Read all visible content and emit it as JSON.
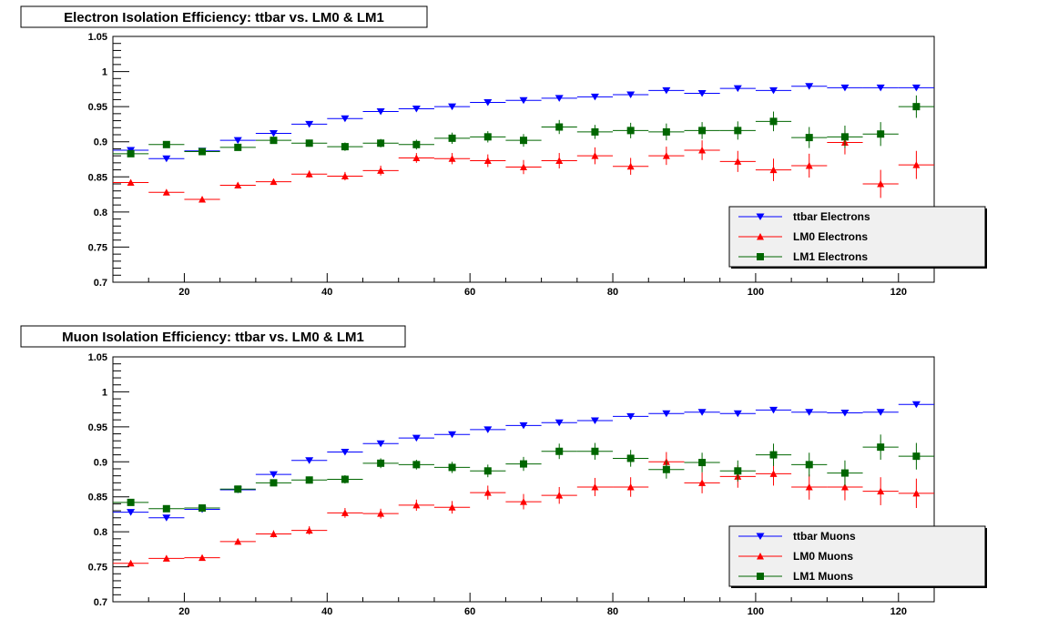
{
  "colors": {
    "ttbar": "#0000ff",
    "lm0": "#ff0000",
    "lm1": "#006600",
    "legend_bg": "#f0f0f0",
    "frame": "#000000"
  },
  "chart_data": [
    {
      "type": "scatter",
      "title": "Electron Isolation Efficiency: ttbar vs. LM0 & LM1",
      "xlabel": "",
      "ylabel": "",
      "xlim": [
        10,
        125
      ],
      "ylim": [
        0.7,
        1.05
      ],
      "xticks": [
        "20",
        "40",
        "60",
        "80",
        "100",
        "120"
      ],
      "yticks": [
        "0.7",
        "0.75",
        "0.8",
        "0.85",
        "0.9",
        "0.95",
        "1",
        "1.05"
      ],
      "legend_position": "bottom-right",
      "x": [
        12.5,
        17.5,
        22.5,
        27.5,
        32.5,
        37.5,
        42.5,
        47.5,
        52.5,
        57.5,
        62.5,
        67.5,
        72.5,
        77.5,
        82.5,
        87.5,
        92.5,
        97.5,
        102.5,
        107.5,
        112.5,
        117.5,
        122.5
      ],
      "series": [
        {
          "name": "ttbar Electrons",
          "marker": "triangle-down",
          "color": "#0000ff",
          "values": [
            0.888,
            0.876,
            0.887,
            0.902,
            0.912,
            0.925,
            0.933,
            0.943,
            0.947,
            0.95,
            0.956,
            0.959,
            0.962,
            0.964,
            0.967,
            0.973,
            0.969,
            0.976,
            0.973,
            0.979,
            0.977,
            0.977,
            0.977
          ],
          "errors": [
            0.003,
            0.003,
            0.003,
            0.003,
            0.003,
            0.003,
            0.002,
            0.002,
            0.002,
            0.002,
            0.002,
            0.002,
            0.002,
            0.002,
            0.002,
            0.002,
            0.002,
            0.002,
            0.002,
            0.002,
            0.002,
            0.002,
            0.002
          ]
        },
        {
          "name": "LM0 Electrons",
          "marker": "triangle-up",
          "color": "#ff0000",
          "values": [
            0.842,
            0.828,
            0.818,
            0.838,
            0.843,
            0.854,
            0.851,
            0.859,
            0.877,
            0.876,
            0.873,
            0.864,
            0.873,
            0.88,
            0.865,
            0.88,
            0.888,
            0.872,
            0.86,
            0.866,
            0.899,
            0.84,
            0.867
          ],
          "errors": [
            0.004,
            0.003,
            0.004,
            0.004,
            0.004,
            0.005,
            0.006,
            0.007,
            0.007,
            0.008,
            0.009,
            0.01,
            0.011,
            0.012,
            0.012,
            0.013,
            0.014,
            0.015,
            0.016,
            0.017,
            0.017,
            0.02,
            0.02
          ]
        },
        {
          "name": "LM1 Electrons",
          "marker": "square",
          "color": "#006600",
          "values": [
            0.883,
            0.896,
            0.886,
            0.892,
            0.902,
            0.898,
            0.893,
            0.898,
            0.896,
            0.905,
            0.907,
            0.902,
            0.921,
            0.914,
            0.916,
            0.914,
            0.916,
            0.916,
            0.929,
            0.906,
            0.907,
            0.911,
            0.95
          ],
          "errors": [
            0.003,
            0.003,
            0.003,
            0.003,
            0.004,
            0.005,
            0.006,
            0.006,
            0.007,
            0.008,
            0.008,
            0.009,
            0.01,
            0.01,
            0.011,
            0.012,
            0.012,
            0.013,
            0.014,
            0.015,
            0.016,
            0.017,
            0.016
          ]
        }
      ]
    },
    {
      "type": "scatter",
      "title": "Muon Isolation Efficiency: ttbar vs. LM0 & LM1",
      "xlabel": "",
      "ylabel": "",
      "xlim": [
        10,
        125
      ],
      "ylim": [
        0.7,
        1.05
      ],
      "xticks": [
        "20",
        "40",
        "60",
        "80",
        "100",
        "120"
      ],
      "yticks": [
        "0.7",
        "0.75",
        "0.8",
        "0.85",
        "0.9",
        "0.95",
        "1",
        "1.05"
      ],
      "legend_position": "bottom-right",
      "x": [
        12.5,
        17.5,
        22.5,
        27.5,
        32.5,
        37.5,
        42.5,
        47.5,
        52.5,
        57.5,
        62.5,
        67.5,
        72.5,
        77.5,
        82.5,
        87.5,
        92.5,
        97.5,
        102.5,
        107.5,
        112.5,
        117.5,
        122.5
      ],
      "series": [
        {
          "name": "ttbar Muons",
          "marker": "triangle-down",
          "color": "#0000ff",
          "values": [
            0.828,
            0.82,
            0.832,
            0.86,
            0.882,
            0.902,
            0.914,
            0.926,
            0.934,
            0.939,
            0.946,
            0.952,
            0.956,
            0.959,
            0.965,
            0.969,
            0.971,
            0.969,
            0.974,
            0.971,
            0.97,
            0.971,
            0.982
          ],
          "errors": [
            0.003,
            0.003,
            0.003,
            0.003,
            0.003,
            0.003,
            0.002,
            0.002,
            0.002,
            0.002,
            0.002,
            0.002,
            0.002,
            0.002,
            0.002,
            0.002,
            0.002,
            0.002,
            0.002,
            0.002,
            0.002,
            0.002,
            0.002
          ]
        },
        {
          "name": "LM0 Muons",
          "marker": "triangle-up",
          "color": "#ff0000",
          "values": [
            0.755,
            0.762,
            0.763,
            0.786,
            0.797,
            0.802,
            0.827,
            0.826,
            0.838,
            0.835,
            0.856,
            0.843,
            0.852,
            0.864,
            0.864,
            0.9,
            0.87,
            0.879,
            0.883,
            0.864,
            0.864,
            0.858,
            0.855
          ],
          "errors": [
            0.004,
            0.004,
            0.004,
            0.004,
            0.005,
            0.006,
            0.007,
            0.007,
            0.008,
            0.009,
            0.01,
            0.011,
            0.012,
            0.013,
            0.014,
            0.014,
            0.015,
            0.016,
            0.017,
            0.018,
            0.019,
            0.02,
            0.021
          ]
        },
        {
          "name": "LM1 Muons",
          "marker": "square",
          "color": "#006600",
          "values": [
            0.842,
            0.833,
            0.834,
            0.861,
            0.87,
            0.874,
            0.875,
            0.898,
            0.896,
            0.892,
            0.887,
            0.897,
            0.915,
            0.915,
            0.905,
            0.889,
            0.899,
            0.887,
            0.91,
            0.896,
            0.884,
            0.921,
            0.908
          ],
          "errors": [
            0.003,
            0.003,
            0.003,
            0.004,
            0.004,
            0.005,
            0.006,
            0.007,
            0.007,
            0.008,
            0.009,
            0.01,
            0.011,
            0.012,
            0.012,
            0.013,
            0.014,
            0.015,
            0.016,
            0.017,
            0.018,
            0.018,
            0.019
          ]
        }
      ]
    }
  ]
}
